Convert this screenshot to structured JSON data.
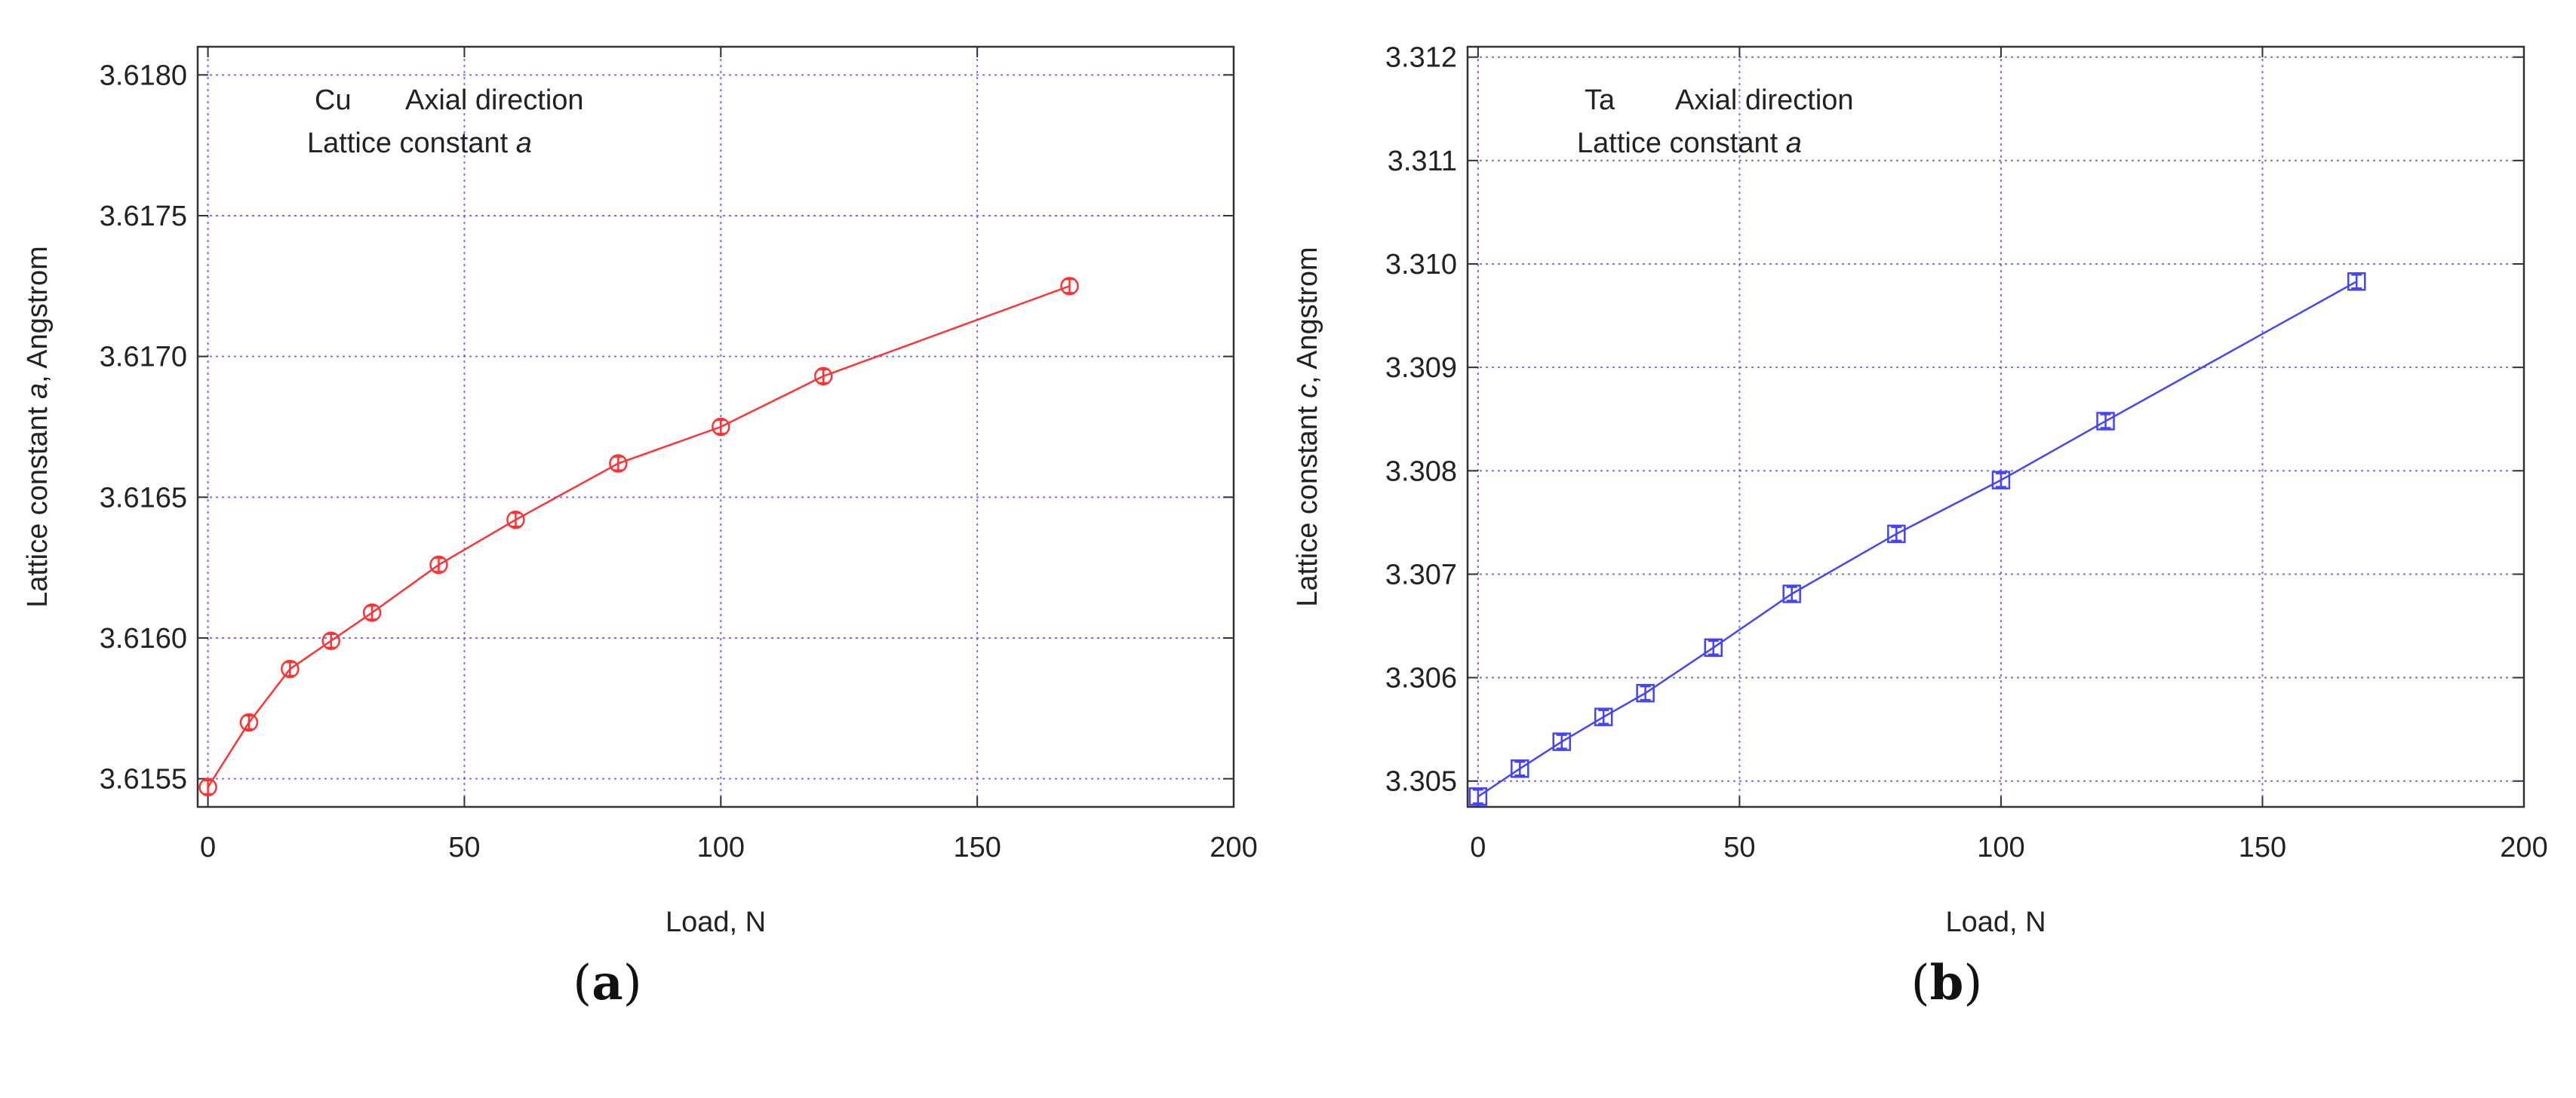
{
  "chart_data": [
    {
      "type": "line",
      "panel_label": "a",
      "annotation": {
        "element": "Cu",
        "direction": "Axial direction",
        "line2_prefix": "Lattice constant ",
        "line2_italic": "a"
      },
      "xlabel": "Load, N",
      "ylabel": {
        "prefix": "Lattice constant ",
        "italic": "a",
        "suffix": ", Angstrom"
      },
      "xlim": [
        -2,
        200
      ],
      "ylim": [
        3.6154,
        3.6181
      ],
      "x_ticks": [
        0,
        50,
        100,
        150,
        200
      ],
      "y_ticks": [
        3.6155,
        3.616,
        3.6165,
        3.617,
        3.6175,
        3.618
      ],
      "y_tick_labels": [
        "3.6155",
        "3.6160",
        "3.6165",
        "3.6170",
        "3.6175",
        "3.6180"
      ],
      "grid": true,
      "marker": "circle",
      "color": "#ff3333",
      "series": [
        {
          "x": [
            0,
            8,
            16,
            24,
            32,
            45,
            60,
            80,
            100,
            120,
            168
          ],
          "values": [
            3.61547,
            3.6157,
            3.61589,
            3.61599,
            3.61609,
            3.61626,
            3.61642,
            3.61662,
            3.61675,
            3.61693,
            3.61725
          ]
        }
      ]
    },
    {
      "type": "line",
      "panel_label": "b",
      "annotation": {
        "element": "Ta",
        "direction": "Axial direction",
        "line2_prefix": "Lattice constant ",
        "line2_italic": "a"
      },
      "xlabel": "Load, N",
      "ylabel": {
        "prefix": "Lattice constant ",
        "italic": "c",
        "suffix": ", Angstrom"
      },
      "xlim": [
        -2,
        200
      ],
      "ylim": [
        3.30475,
        3.3121
      ],
      "x_ticks": [
        0,
        50,
        100,
        150,
        200
      ],
      "y_ticks": [
        3.305,
        3.306,
        3.307,
        3.308,
        3.309,
        3.31,
        3.311,
        3.312
      ],
      "y_tick_labels": [
        "3.305",
        "3.306",
        "3.307",
        "3.308",
        "3.309",
        "3.310",
        "3.311",
        "3.312"
      ],
      "grid": true,
      "marker": "square",
      "color": "#4444ff",
      "series": [
        {
          "x": [
            0,
            8,
            16,
            24,
            32,
            45,
            60,
            80,
            100,
            120,
            168
          ],
          "values": [
            3.30485,
            3.30512,
            3.30538,
            3.30562,
            3.30585,
            3.30629,
            3.30681,
            3.30739,
            3.30791,
            3.30848,
            3.30983
          ]
        }
      ]
    }
  ]
}
